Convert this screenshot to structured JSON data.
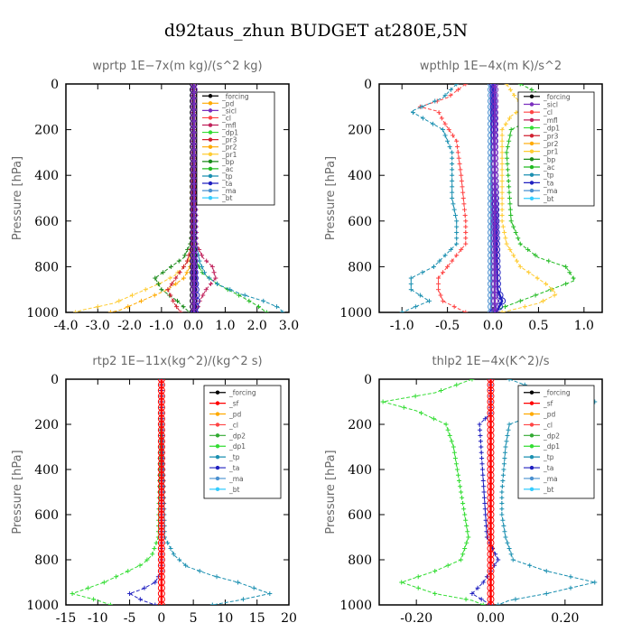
{
  "figure_title": "d92taus_zhun  BUDGET at280E,5N",
  "colors": {
    "forcing": "#000000",
    "sf": "#ff0000",
    "pd": "#ffaa00",
    "sicl": "#7b2fbe",
    "cl": "#ff4444",
    "mfl": "#c0205a",
    "dp1": "#33dd33",
    "dp2": "#33aa33",
    "pr3": "#d02030",
    "pr2": "#ffaa00",
    "pr1": "#ffcc33",
    "bp": "#1a8a1a",
    "ac": "#22bb22",
    "tp": "#1a8fb0",
    "ta": "#2020c0",
    "ma": "#4a90d0",
    "bt": "#33ccff"
  },
  "chart_data": [
    {
      "type": "line",
      "title": "wprtp  1E−7x(m kg)/(s^2 kg)",
      "ylabel": "Pressure [hPa]",
      "xlim": [
        -4,
        3
      ],
      "ylim": [
        1000,
        0
      ],
      "xticks": [
        "-4.0",
        "-3.0",
        "-2.0",
        "-1.0",
        "0.0",
        "1.0",
        "2.0",
        "3.0"
      ],
      "yticks": [
        "0",
        "200",
        "400",
        "600",
        "800",
        "1000"
      ],
      "legend": [
        "_forcing",
        "_pd",
        "_sicl",
        "_cl",
        "_mfl",
        "_dp1",
        "_pr3",
        "_pr2",
        "_pr1",
        "_bp",
        "_ac",
        "_tp",
        "_ta",
        "_ma",
        "_bt"
      ],
      "series": [
        {
          "name": "_pr1",
          "color": "#ffcc33",
          "pressure": [
            0,
            300,
            400,
            500,
            600,
            700,
            760,
            800,
            840,
            870,
            900,
            930,
            960,
            990,
            1000
          ],
          "values": [
            0,
            0,
            -0.05,
            -0.05,
            -0.03,
            -0.05,
            -0.1,
            -0.3,
            -0.6,
            -1.0,
            -1.5,
            -2.0,
            -2.5,
            -3.5,
            -3.7
          ]
        },
        {
          "name": "_pr2",
          "color": "#ffaa00",
          "pressure": [
            0,
            700,
            800,
            850,
            900,
            930,
            960,
            990,
            1000
          ],
          "values": [
            0,
            -0.02,
            -0.1,
            -0.3,
            -0.8,
            -1.3,
            -1.8,
            -2.3,
            -2.6
          ]
        },
        {
          "name": "_bp",
          "color": "#1a8a1a",
          "pressure": [
            0,
            600,
            700,
            760,
            800,
            850,
            900,
            950,
            990,
            1000
          ],
          "values": [
            0,
            0,
            -0.1,
            -0.3,
            -0.7,
            -1.2,
            -1.0,
            -0.5,
            -0.2,
            -0.1
          ]
        },
        {
          "name": "_ac",
          "color": "#22bb22",
          "pressure": [
            0,
            700,
            780,
            830,
            880,
            930,
            970,
            1000
          ],
          "values": [
            0,
            0.05,
            0.1,
            0.3,
            0.8,
            1.5,
            2.0,
            2.3
          ]
        },
        {
          "name": "_tp",
          "color": "#1a8fb0",
          "pressure": [
            0,
            600,
            700,
            780,
            840,
            880,
            920,
            950,
            980,
            1000
          ],
          "values": [
            0,
            0,
            0.1,
            0.2,
            0.4,
            0.8,
            1.5,
            2.2,
            2.7,
            2.8
          ]
        },
        {
          "name": "_mfl",
          "color": "#c0205a",
          "pressure": [
            0,
            700,
            760,
            800,
            850,
            900,
            950,
            1000
          ],
          "values": [
            0,
            0.1,
            0.3,
            0.6,
            0.7,
            0.4,
            0.2,
            0.1
          ]
        },
        {
          "name": "_pr3",
          "color": "#d02030",
          "pressure": [
            0,
            700,
            780,
            840,
            900,
            960,
            1000
          ],
          "values": [
            0,
            -0.05,
            -0.2,
            -0.5,
            -0.8,
            -0.6,
            -0.4
          ]
        },
        {
          "name": "_ta",
          "color": "#2020c0",
          "pressure": [
            0,
            700,
            850,
            950,
            1000
          ],
          "values": [
            0,
            0.02,
            0.05,
            0.1,
            0.05
          ]
        },
        {
          "name": "_forcing",
          "color": "#000000",
          "pressure": [
            0,
            1000
          ],
          "values": [
            0,
            0
          ]
        },
        {
          "name": "_sicl",
          "color": "#7b2fbe",
          "pressure": [
            0,
            1000
          ],
          "values": [
            0.02,
            0.02
          ]
        }
      ]
    },
    {
      "type": "line",
      "title": "wpthlp  1E−4x(m K)/s^2",
      "ylabel": "Pressure [hPa]",
      "xlim": [
        -1.25,
        1.2
      ],
      "ylim": [
        1000,
        0
      ],
      "xticks": [
        "-1.0",
        "-0.5",
        "0.0",
        "0.5",
        "1.0"
      ],
      "yticks": [
        "0",
        "200",
        "400",
        "600",
        "800",
        "1000"
      ],
      "legend": [
        "_forcing",
        "_sicl",
        "_cl",
        "_mfl",
        "_dp1",
        "_pr3",
        "_pr2",
        "_pr1",
        "_bp",
        "_ac",
        "_tp",
        "_ta",
        "_ma",
        "_bt"
      ],
      "series": [
        {
          "name": "_dp1",
          "color": "#ff4444",
          "pressure": [
            0,
            60,
            100,
            120,
            160,
            250,
            400,
            600,
            700,
            800,
            850,
            900,
            950,
            1000
          ],
          "values": [
            -0.3,
            -0.5,
            -0.8,
            -0.6,
            -0.55,
            -0.4,
            -0.35,
            -0.3,
            -0.3,
            -0.5,
            -0.6,
            -0.6,
            -0.55,
            -0.3
          ]
        },
        {
          "name": "_tp",
          "color": "#1a8fb0",
          "pressure": [
            0,
            60,
            120,
            200,
            300,
            500,
            600,
            700,
            800,
            850,
            900,
            950,
            1000
          ],
          "values": [
            -0.4,
            -0.55,
            -0.9,
            -0.55,
            -0.45,
            -0.45,
            -0.4,
            -0.4,
            -0.65,
            -0.9,
            -0.9,
            -0.7,
            -1.0
          ]
        },
        {
          "name": "_ac",
          "color": "#22bb22",
          "pressure": [
            0,
            60,
            100,
            140,
            200,
            300,
            600,
            700,
            760,
            800,
            860,
            920,
            980,
            1000
          ],
          "values": [
            0.3,
            0.6,
            1.0,
            0.5,
            0.2,
            0.15,
            0.2,
            0.3,
            0.5,
            0.8,
            0.9,
            0.5,
            0.1,
            0.0
          ]
        },
        {
          "name": "_pr1",
          "color": "#ffcc33",
          "pressure": [
            0,
            60,
            100,
            140,
            200,
            300,
            600,
            700,
            800,
            880,
            920,
            960,
            1000
          ],
          "values": [
            0.15,
            0.25,
            0.35,
            0.2,
            0.1,
            0.1,
            0.1,
            0.15,
            0.3,
            0.6,
            0.7,
            0.5,
            0.1
          ]
        },
        {
          "name": "_ma",
          "color": "#4a90d0",
          "pressure": [
            0,
            1000
          ],
          "values": [
            -0.02,
            -0.02
          ]
        },
        {
          "name": "_ta",
          "color": "#2020c0",
          "pressure": [
            0,
            900,
            950,
            990,
            1000
          ],
          "values": [
            0,
            0.05,
            0.1,
            0.05,
            0
          ]
        },
        {
          "name": "_forcing",
          "color": "#7b2fbe",
          "pressure": [
            0,
            1000
          ],
          "values": [
            0.02,
            0.02
          ]
        }
      ]
    },
    {
      "type": "line",
      "title": "rtp2  1E−11x(kg^2)/(kg^2 s)",
      "ylabel": "Pressure [hPa]",
      "xlim": [
        -15,
        20
      ],
      "ylim": [
        1000,
        0
      ],
      "xticks": [
        "-15",
        "-10",
        "-5",
        "0",
        "5",
        "10",
        "15",
        "20"
      ],
      "yticks": [
        "0",
        "200",
        "400",
        "600",
        "800",
        "1000"
      ],
      "legend": [
        "_forcing",
        "_sf",
        "_pd",
        "_cl",
        "_dp2",
        "_dp1",
        "_tp",
        "_ta",
        "_ma",
        "_bt"
      ],
      "series": [
        {
          "name": "_dp1",
          "color": "#33dd33",
          "pressure": [
            0,
            700,
            780,
            820,
            860,
            900,
            930,
            950,
            980,
            1000
          ],
          "values": [
            0,
            -0.5,
            -1.5,
            -3,
            -6,
            -9,
            -12,
            -14,
            -10,
            -8
          ]
        },
        {
          "name": "_tp",
          "color": "#1a8fb0",
          "pressure": [
            0,
            700,
            780,
            830,
            870,
            900,
            930,
            950,
            980,
            1000
          ],
          "values": [
            0,
            0.5,
            2,
            4,
            8,
            12,
            15,
            17,
            12,
            8
          ]
        },
        {
          "name": "_ta",
          "color": "#2020c0",
          "pressure": [
            0,
            850,
            900,
            930,
            950,
            980,
            1000
          ],
          "values": [
            0,
            0,
            -1,
            -3,
            -5,
            -3,
            -1
          ]
        },
        {
          "name": "_forcing",
          "color": "#ff0000",
          "pressure": [
            0,
            1000
          ],
          "values": [
            0,
            0
          ]
        }
      ]
    },
    {
      "type": "line",
      "title": "thlp2  1E−4x(K^2)/s",
      "ylabel": "Pressure [hPa]",
      "xlim": [
        -0.3,
        0.3
      ],
      "ylim": [
        1000,
        0
      ],
      "xticks": [
        "-0.20",
        "0.00",
        "0.20"
      ],
      "yticks": [
        "0",
        "200",
        "400",
        "600",
        "800",
        "1000"
      ],
      "legend": [
        "_forcing",
        "_sf",
        "_pd",
        "_cl",
        "_dp2",
        "_dp1",
        "_tp",
        "_ta",
        "_ma",
        "_bt"
      ],
      "series": [
        {
          "name": "_dp1",
          "color": "#33dd33",
          "pressure": [
            0,
            60,
            100,
            140,
            200,
            300,
            500,
            600,
            700,
            800,
            850,
            900,
            950,
            980,
            1000
          ],
          "values": [
            -0.05,
            -0.15,
            -0.29,
            -0.2,
            -0.12,
            -0.1,
            -0.08,
            -0.07,
            -0.06,
            -0.08,
            -0.15,
            -0.24,
            -0.15,
            -0.05,
            -0.02
          ]
        },
        {
          "name": "_tp",
          "color": "#1a8fb0",
          "pressure": [
            0,
            60,
            100,
            140,
            200,
            300,
            500,
            600,
            700,
            800,
            850,
            900,
            950,
            980,
            1000
          ],
          "values": [
            0.05,
            0.15,
            0.28,
            0.15,
            0.05,
            0.04,
            0.03,
            0.03,
            0.04,
            0.06,
            0.15,
            0.28,
            0.15,
            0.05,
            0.02
          ]
        },
        {
          "name": "_ta",
          "color": "#2020c0",
          "pressure": [
            0,
            150,
            200,
            700,
            800,
            900,
            950,
            1000
          ],
          "values": [
            0,
            0,
            -0.03,
            -0.01,
            0.02,
            -0.02,
            -0.05,
            0
          ]
        },
        {
          "name": "_forcing",
          "color": "#ff0000",
          "pressure": [
            0,
            1000
          ],
          "values": [
            0,
            0
          ]
        }
      ]
    }
  ]
}
